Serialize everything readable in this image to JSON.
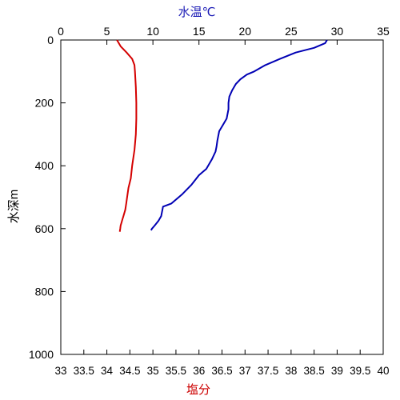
{
  "chart_data": {
    "type": "line",
    "title": "",
    "inverted_y": true,
    "grid": false,
    "legend": "none",
    "y_axis": {
      "label": "水深m",
      "range": [
        0,
        1000
      ],
      "ticks": [
        0,
        200,
        400,
        600,
        800,
        1000
      ]
    },
    "x_axis_top": {
      "label": "水温℃",
      "label_color": "#1a1ab5",
      "range": [
        0,
        35
      ],
      "ticks": [
        0,
        5,
        10,
        15,
        20,
        25,
        30,
        35
      ]
    },
    "x_axis_bottom": {
      "label": "塩分",
      "label_color": "#cc0000",
      "range": [
        33,
        40
      ],
      "ticks": [
        "33",
        "33.5",
        "34",
        "34.5",
        "35",
        "35.5",
        "36",
        "36.5",
        "37",
        "37.5",
        "38",
        "38.5",
        "39",
        "39.5",
        "40"
      ]
    },
    "series": [
      {
        "variable": "temperature",
        "axis": "top",
        "color": "#0000b4",
        "x": [
          28.9,
          28.7,
          27.5,
          25.5,
          23.8,
          22.2,
          21.0,
          20.2,
          19.5,
          19.0,
          18.6,
          18.3,
          18.2,
          18.2,
          18.0,
          17.6,
          17.2,
          17.0,
          16.9,
          16.8,
          16.4,
          15.8,
          15.0,
          14.2,
          13.2,
          12.0,
          11.1,
          10.9,
          10.6,
          10.2,
          9.9,
          9.8
        ],
        "y": [
          0,
          10,
          25,
          40,
          60,
          80,
          100,
          110,
          125,
          140,
          160,
          180,
          200,
          220,
          250,
          270,
          290,
          320,
          340,
          355,
          380,
          410,
          430,
          460,
          490,
          520,
          530,
          560,
          575,
          590,
          600,
          605
        ]
      },
      {
        "variable": "salinity",
        "axis": "bottom",
        "color": "#d40000",
        "x": [
          34.22,
          34.3,
          34.43,
          34.55,
          34.6,
          34.61,
          34.63,
          34.64,
          34.64,
          34.63,
          34.6,
          34.55,
          34.52,
          34.47,
          34.44,
          34.42,
          34.4,
          34.36,
          34.34,
          34.32,
          34.3,
          34.29,
          34.28
        ],
        "y": [
          0,
          20,
          40,
          60,
          80,
          100,
          150,
          200,
          250,
          300,
          350,
          400,
          440,
          470,
          500,
          520,
          540,
          560,
          570,
          580,
          590,
          600,
          610
        ]
      }
    ]
  }
}
